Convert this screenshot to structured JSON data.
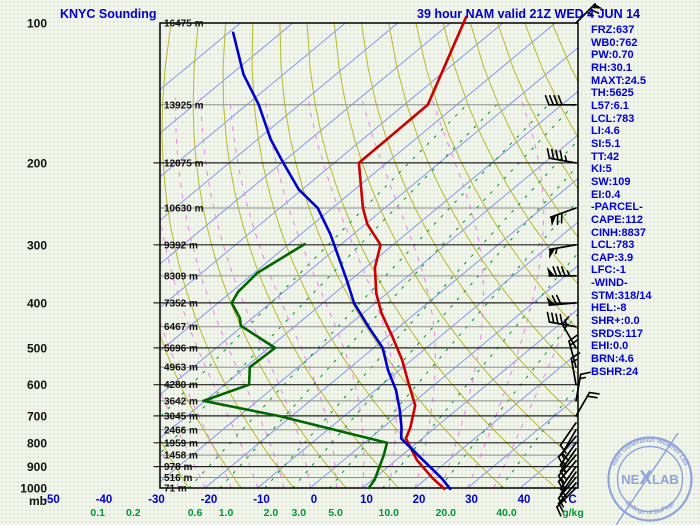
{
  "title": {
    "station_title": "KNYC Sounding",
    "model_title": "39 hour NAM valid 21Z WED 4 JUN 14"
  },
  "colors": {
    "title_blue": "#0000cc",
    "panel_blue": "#0000dd",
    "temperature": "#cc0000",
    "dewpoint": "#006600",
    "parcel": "#0000cc",
    "isotherm": "#8899ee",
    "dry_adiabat": "#b8ba30",
    "mixing_ratio": "#00a040",
    "moist_adiabat": "#ee82ee",
    "pressure_major": "#222222",
    "pressure_minor": "#909090",
    "border": "#000000",
    "barb": "#000000",
    "label_black": "#111111",
    "temp_tick_blue": "#0000cc",
    "mixing_tick_green": "#009933",
    "logo_blue": "#8fa4da"
  },
  "axes": {
    "pressure_unit": "mb",
    "pressure_major_ticks": [
      100,
      200,
      300,
      400,
      500,
      600,
      700,
      800,
      900,
      1000
    ],
    "altitude_labels": [
      {
        "p": 100,
        "label": "16475 m"
      },
      {
        "p": 150,
        "label": "13925 m"
      },
      {
        "p": 200,
        "label": "12075 m"
      },
      {
        "p": 250,
        "label": "10630 m"
      },
      {
        "p": 300,
        "label": "9392 m"
      },
      {
        "p": 350,
        "label": "8309 m"
      },
      {
        "p": 400,
        "label": "7352 m"
      },
      {
        "p": 450,
        "label": "6467 m"
      },
      {
        "p": 500,
        "label": "5696 m"
      },
      {
        "p": 550,
        "label": "4963 m"
      },
      {
        "p": 600,
        "label": "4280 m"
      },
      {
        "p": 650,
        "label": "3642 m"
      },
      {
        "p": 700,
        "label": "3045 m"
      },
      {
        "p": 750,
        "label": "2466 m"
      },
      {
        "p": 800,
        "label": "1959 m"
      },
      {
        "p": 850,
        "label": "1458 m"
      },
      {
        "p": 900,
        "label": "978 m"
      },
      {
        "p": 950,
        "label": "516 m"
      },
      {
        "p": 1000,
        "label": "71 m"
      }
    ],
    "temp_ticks": [
      -50,
      -40,
      -30,
      -20,
      -10,
      0,
      10,
      20,
      30,
      40
    ],
    "temp_unit": "C",
    "mixing_tick_labels": [
      "0.1",
      "0.2",
      "0.6",
      "1.0",
      "2.0",
      "3.0",
      "5.0",
      "10.0",
      "20.0",
      "40.0"
    ],
    "mixing_values": [
      0.1,
      0.2,
      0.6,
      1.0,
      2.0,
      3.0,
      5.0,
      10,
      20,
      40
    ],
    "mixing_unit": "g/kg"
  },
  "panel": {
    "lines": [
      "FRZ:637",
      "WB0:762",
      "PW:0.70",
      "RH:30.1",
      "MAXT:24.5",
      "TH:5625",
      "L57:6.1",
      "LCL:783",
      "LI:4.6",
      "SI:5.1",
      "TT:42",
      "KI:5",
      "SW:109",
      "EI:0.4",
      "-PARCEL-",
      "CAPE:112",
      "CINH:8837",
      "LCL:783",
      "CAP:3.9",
      "LFC:-1",
      "-WIND-",
      "STM:318/14",
      "HEL:-8",
      "SHR+:0.0",
      "SRDS:117",
      "EHI:0.0",
      "BRN:4.6",
      "BSHR:24"
    ]
  },
  "logo": {
    "name": "NEXLAB",
    "top_text": "Next Generation Weather Lab",
    "bottom_text": "College of DuPage"
  },
  "chart_data": {
    "type": "line",
    "subtype": "skew-t-log-p-sounding",
    "station": "KNYC",
    "model": "NAM",
    "forecast_hour": 39,
    "valid": "21Z WED 4 JUN 14",
    "pressure_range_mb": [
      100,
      1000
    ],
    "temp_axis_range_c": [
      -50,
      40
    ],
    "grid": {
      "isotherm_step_c": 10,
      "dry_adiabat_theta_k": {
        "min": 240,
        "max": 430,
        "step": 10
      },
      "moist_adiabat_start_c": {
        "min": -30,
        "max": 35,
        "step": 5
      },
      "mixing_ratio_lines_gkg": [
        0.1,
        0.2,
        0.6,
        1.0,
        2.0,
        3.0,
        5.0,
        10,
        20,
        40
      ],
      "pressure_lines_every_mb": 50
    },
    "series": [
      {
        "name": "temperature",
        "color_key": "temperature",
        "points_p_t": [
          [
            97,
            -78.4
          ],
          [
            150,
            -65.5
          ],
          [
            200,
            -65.3
          ],
          [
            250,
            -54.2
          ],
          [
            271,
            -49.6
          ],
          [
            300,
            -42.4
          ],
          [
            336,
            -38.2
          ],
          [
            382,
            -32.0
          ],
          [
            421,
            -26.5
          ],
          [
            474,
            -18.9
          ],
          [
            531,
            -11.8
          ],
          [
            587,
            -6.1
          ],
          [
            665,
            1.1
          ],
          [
            741,
            5.2
          ],
          [
            783,
            6.9
          ],
          [
            872,
            14.0
          ],
          [
            953,
            21.1
          ],
          [
            1005,
            25.8
          ]
        ]
      },
      {
        "name": "dewpoint",
        "color_key": "dewpoint",
        "points_p_t": [
          [
            299,
            -57.0
          ],
          [
            345,
            -59.4
          ],
          [
            379,
            -58.7
          ],
          [
            400,
            -57.4
          ],
          [
            431,
            -52.4
          ],
          [
            448,
            -50.4
          ],
          [
            500,
            -38.8
          ],
          [
            550,
            -39.2
          ],
          [
            600,
            -35.3
          ],
          [
            650,
            -40.3
          ],
          [
            700,
            -22.6
          ],
          [
            800,
            4.3
          ],
          [
            850,
            6.5
          ],
          [
            960,
            10.4
          ],
          [
            1000,
            11.2
          ]
        ]
      },
      {
        "name": "parcel",
        "color_key": "parcel",
        "points_p_t": [
          [
            105,
            -119.1
          ],
          [
            129,
            -107.6
          ],
          [
            150,
            -97.7
          ],
          [
            178,
            -87.5
          ],
          [
            200,
            -79.7
          ],
          [
            228,
            -70.7
          ],
          [
            250,
            -62.8
          ],
          [
            285,
            -54.3
          ],
          [
            358,
            -40.6
          ],
          [
            400,
            -34.1
          ],
          [
            450,
            -25.9
          ],
          [
            500,
            -18.3
          ],
          [
            558,
            -12.2
          ],
          [
            616,
            -6.1
          ],
          [
            680,
            -0.8
          ],
          [
            741,
            3.5
          ],
          [
            783,
            6.0
          ],
          [
            850,
            13.0
          ],
          [
            953,
            22.8
          ],
          [
            1005,
            26.9
          ]
        ]
      }
    ],
    "winds": [
      {
        "p": 100,
        "dir": 45,
        "spd": 65
      },
      {
        "p": 150,
        "dir": 270,
        "spd": 40
      },
      {
        "p": 200,
        "dir": 280,
        "spd": 45
      },
      {
        "p": 250,
        "dir": 250,
        "spd": 70
      },
      {
        "p": 300,
        "dir": 260,
        "spd": 55
      },
      {
        "p": 350,
        "dir": 270,
        "spd": 85
      },
      {
        "p": 400,
        "dir": 265,
        "spd": 70
      },
      {
        "p": 450,
        "dir": 280,
        "spd": 45
      },
      {
        "p": 500,
        "dir": 330,
        "spd": 15
      },
      {
        "p": 550,
        "dir": 345,
        "spd": 20
      },
      {
        "p": 600,
        "dir": 350,
        "spd": 15
      },
      {
        "p": 650,
        "dir": 10,
        "spd": 15
      },
      {
        "p": 700,
        "dir": 30,
        "spd": 20
      },
      {
        "p": 725,
        "dir": 215,
        "spd": 10
      },
      {
        "p": 750,
        "dir": 210,
        "spd": 10
      },
      {
        "p": 775,
        "dir": 220,
        "spd": 15
      },
      {
        "p": 800,
        "dir": 215,
        "spd": 15
      },
      {
        "p": 825,
        "dir": 215,
        "spd": 15
      },
      {
        "p": 850,
        "dir": 220,
        "spd": 15
      },
      {
        "p": 875,
        "dir": 220,
        "spd": 15
      },
      {
        "p": 900,
        "dir": 215,
        "spd": 15
      },
      {
        "p": 925,
        "dir": 215,
        "spd": 10
      },
      {
        "p": 950,
        "dir": 220,
        "spd": 10
      },
      {
        "p": 975,
        "dir": 220,
        "spd": 10
      },
      {
        "p": 1000,
        "dir": 225,
        "spd": 10
      }
    ],
    "indices": {
      "FRZ": 637,
      "WB0": 762,
      "PW": 0.7,
      "RH": 30.1,
      "MAXT": 24.5,
      "TH": 5625,
      "L57": 6.1,
      "LCL": 783,
      "LI": 4.6,
      "SI": 5.1,
      "TT": 42,
      "KI": 5,
      "SW": 109,
      "EI": 0.4,
      "CAPE": 112,
      "CINH": 8837,
      "PARCEL_LCL": 783,
      "CAP": 3.9,
      "LFC": -1,
      "STM": "318/14",
      "HEL": -8,
      "SHRplus": 0.0,
      "SRDS": 117,
      "EHI": 0.0,
      "BRN": 4.6,
      "BSHR": 24
    }
  }
}
